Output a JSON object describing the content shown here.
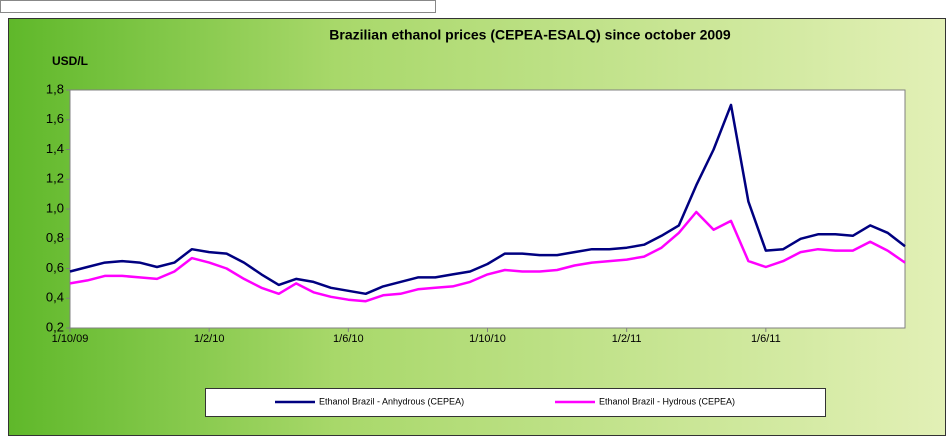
{
  "chart_data": {
    "type": "line",
    "title": "Brazilian ethanol prices (CEPEA-ESALQ) since october 2009",
    "y_label": "USD/L",
    "categories": [
      "1/10/09",
      null,
      null,
      null,
      null,
      null,
      null,
      null,
      "1/2/10",
      null,
      null,
      null,
      null,
      null,
      null,
      null,
      "1/6/10",
      null,
      null,
      null,
      null,
      null,
      null,
      null,
      "1/10/10",
      null,
      null,
      null,
      null,
      null,
      null,
      null,
      "1/2/11",
      null,
      null,
      null,
      null,
      null,
      null,
      null,
      "1/6/11",
      null,
      null,
      null,
      null,
      null,
      null,
      null,
      null
    ],
    "series": [
      {
        "name": "Ethanol Brazil - Anhydrous (CEPEA)",
        "color": "#000080",
        "values": [
          0.58,
          0.61,
          0.64,
          0.65,
          0.64,
          0.61,
          0.64,
          0.73,
          0.71,
          0.7,
          0.64,
          0.56,
          0.49,
          0.53,
          0.51,
          0.47,
          0.45,
          0.43,
          0.48,
          0.51,
          0.54,
          0.54,
          0.56,
          0.58,
          0.63,
          0.7,
          0.7,
          0.69,
          0.69,
          0.71,
          0.73,
          0.73,
          0.74,
          0.76,
          0.82,
          0.89,
          1.16,
          1.4,
          1.7,
          1.05,
          0.72,
          0.73,
          0.8,
          0.83,
          0.83,
          0.82,
          0.89,
          0.84,
          0.75
        ]
      },
      {
        "name": "Ethanol Brazil - Hydrous (CEPEA)",
        "color": "#ff00ff",
        "values": [
          0.5,
          0.52,
          0.55,
          0.55,
          0.54,
          0.53,
          0.58,
          0.67,
          0.64,
          0.6,
          0.53,
          0.47,
          0.43,
          0.5,
          0.44,
          0.41,
          0.39,
          0.38,
          0.42,
          0.43,
          0.46,
          0.47,
          0.48,
          0.51,
          0.56,
          0.59,
          0.58,
          0.58,
          0.59,
          0.62,
          0.64,
          0.65,
          0.66,
          0.68,
          0.74,
          0.84,
          0.98,
          0.86,
          0.92,
          0.65,
          0.61,
          0.65,
          0.71,
          0.73,
          0.72,
          0.72,
          0.78,
          0.72,
          0.64
        ]
      }
    ],
    "ylim": [
      0.2,
      1.8
    ],
    "yticks": [
      {
        "value": 0.2,
        "label": "0,2"
      },
      {
        "value": 0.4,
        "label": "0,4"
      },
      {
        "value": 0.6,
        "label": "0,6"
      },
      {
        "value": 0.8,
        "label": "0,8"
      },
      {
        "value": 1.0,
        "label": "1,0"
      },
      {
        "value": 1.2,
        "label": "1,2"
      },
      {
        "value": 1.4,
        "label": "1,4"
      },
      {
        "value": 1.6,
        "label": "1,6"
      },
      {
        "value": 1.8,
        "label": "1,8"
      }
    ],
    "grid": false,
    "legend": "bottom"
  }
}
